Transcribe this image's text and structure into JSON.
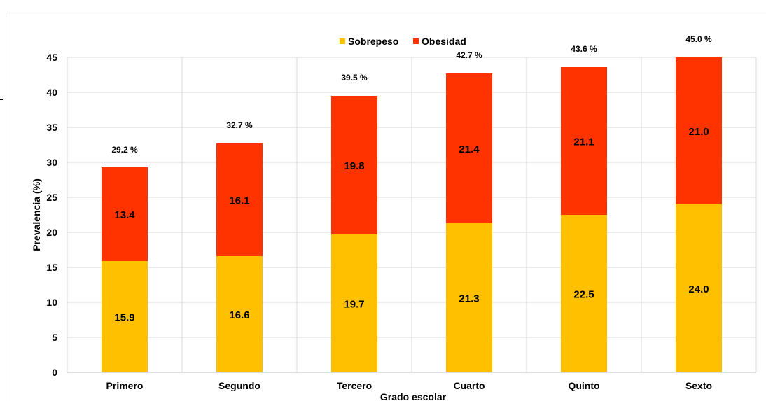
{
  "chart_data": {
    "type": "bar",
    "stacked": true,
    "categories": [
      "Primero",
      "Segundo",
      "Tercero",
      "Cuarto",
      "Quinto",
      "Sexto"
    ],
    "series": [
      {
        "name": "Sobrepeso",
        "values": [
          15.9,
          16.6,
          19.7,
          21.3,
          22.5,
          24.0
        ],
        "color": "#FFC000"
      },
      {
        "name": "Obesidad",
        "values": [
          13.4,
          16.1,
          19.8,
          21.4,
          21.1,
          21.0
        ],
        "color": "#FF3300"
      }
    ],
    "series_labels": [
      [
        "15.9",
        "16.6",
        "19.7",
        "21.3",
        "22.5",
        "24.0"
      ],
      [
        "13.4",
        "16.1",
        "19.8",
        "21.4",
        "21.1",
        "21.0"
      ]
    ],
    "totals": [
      29.2,
      32.7,
      39.5,
      42.7,
      43.6,
      45.0
    ],
    "total_labels": [
      "29.2 %",
      "32.7 %",
      "39.5 %",
      "42.7 %",
      "43.6 %",
      "45.0 %"
    ],
    "xlabel": "Grado escolar",
    "ylabel": "Prevalencia (%)",
    "ylim": [
      0,
      45
    ],
    "yticks": [
      "0",
      "5",
      "10",
      "15",
      "20",
      "25",
      "30",
      "35",
      "40",
      "45"
    ],
    "grid": true,
    "legend_position": "top"
  }
}
